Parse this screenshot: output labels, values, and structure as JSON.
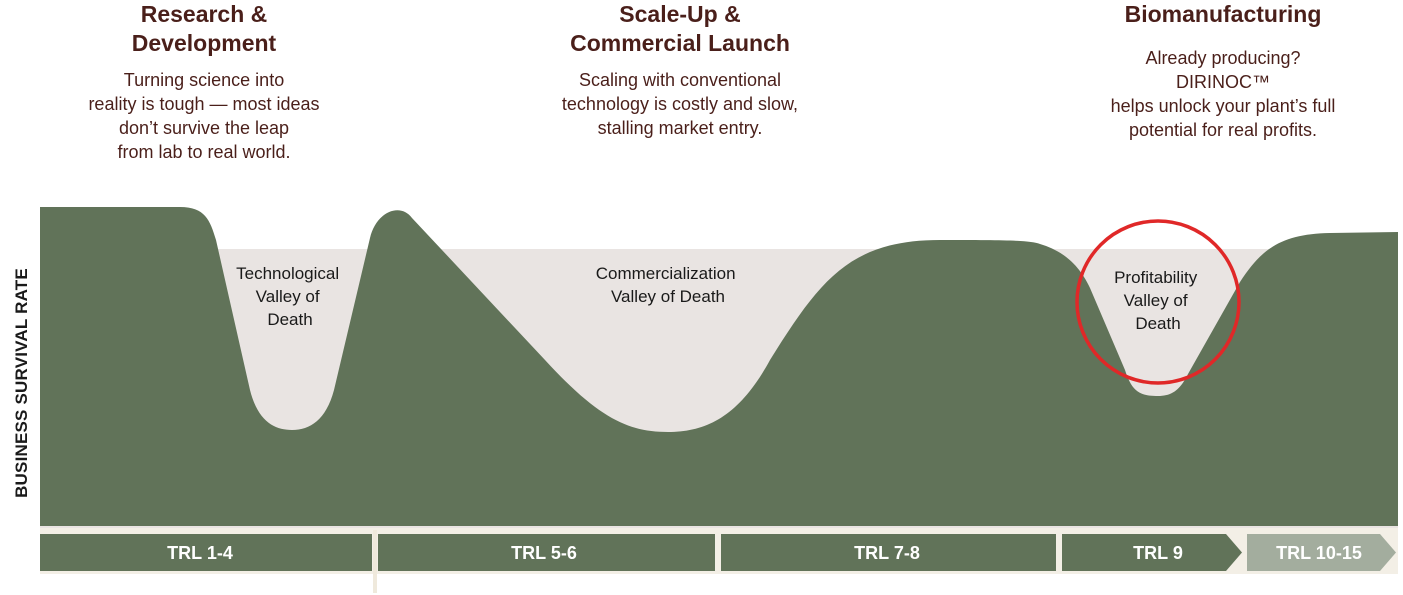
{
  "phases": [
    {
      "title": "Research &\nDevelopment",
      "desc": "Turning science into\nreality is tough — most ideas\ndon’t survive the leap\nfrom lab to real world."
    },
    {
      "title": "Scale-Up &\nCommercial Launch",
      "desc": "Scaling with conventional\ntechnology is costly and slow,\nstalling market entry."
    },
    {
      "title": "Biomanufacturing",
      "desc": "Already producing?\nDIRINOC™\nhelps unlock your plant’s full\npotential for real profits."
    }
  ],
  "y_axis_label": "BUSINESS SURVIVAL RATE",
  "valleys": [
    {
      "label": [
        "Technological",
        "Valley of",
        "Death"
      ]
    },
    {
      "label": [
        "Commercialization",
        "Valley of Death"
      ]
    },
    {
      "label": [
        "Profitability",
        "Valley of",
        "Death"
      ],
      "highlighted": true
    }
  ],
  "trl_stages": [
    "TRL 1-4",
    "TRL 5-6",
    "TRL 7-8",
    "TRL 9",
    "TRL 10-15"
  ],
  "colors": {
    "curve_fill": "#617359",
    "valley_fill": "#e9e4e2",
    "text_dark": "#4a1f1a",
    "trl_bar": "#617359",
    "trl_bar_light": "#a3ad9e",
    "highlight_circle": "#e02828"
  }
}
